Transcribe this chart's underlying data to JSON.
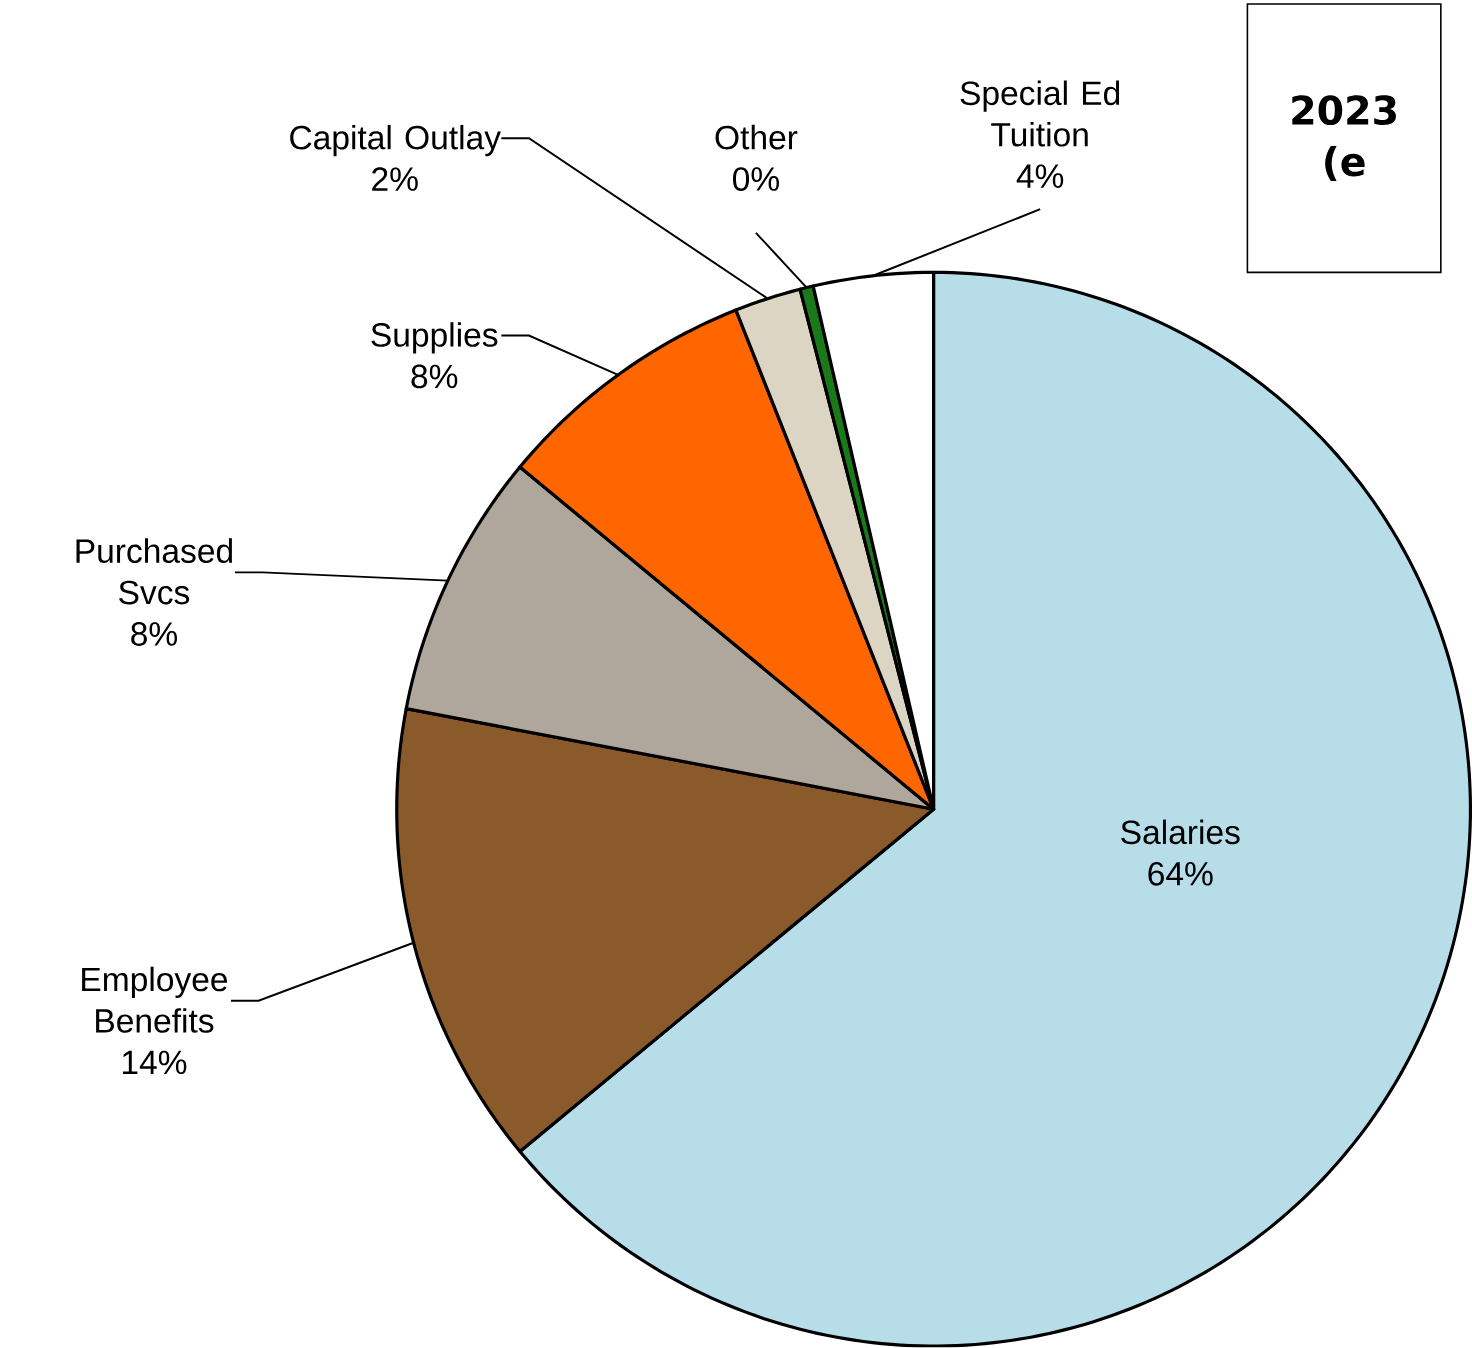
{
  "chart_data": {
    "type": "pie",
    "title": "2023 (e",
    "categories": [
      "Salaries",
      "Employee Benefits",
      "Purchased Svcs",
      "Supplies",
      "Capital Outlay",
      "Other",
      "Special Ed Tuition"
    ],
    "values": [
      64,
      14,
      8,
      8,
      2,
      0.4,
      3.6
    ],
    "value_labels": [
      "64%",
      "14%",
      "8%",
      "8%",
      "2%",
      "0%",
      "4%"
    ],
    "colors": [
      "#b7dde8",
      "#8b5a2b",
      "#b0a79c",
      "#ff6600",
      "#ddd5c4",
      "#1a7a1a",
      "#ffffff"
    ]
  }
}
